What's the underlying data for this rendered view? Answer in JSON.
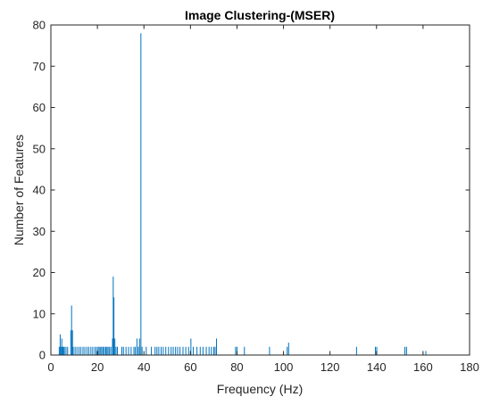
{
  "chart_data": {
    "type": "bar",
    "title": "Image Clustering-(MSER)",
    "xlabel": "Frequency (Hz)",
    "ylabel": "Number of Features",
    "xlim": [
      0,
      180
    ],
    "ylim": [
      0,
      80
    ],
    "xticks": [
      0,
      20,
      40,
      60,
      80,
      100,
      120,
      140,
      160,
      180
    ],
    "yticks": [
      0,
      10,
      20,
      30,
      40,
      50,
      60,
      70,
      80
    ],
    "grid": false,
    "legend": "none",
    "color": "#0072BD",
    "x": [
      3.6,
      4.0,
      4.3,
      4.7,
      5.0,
      5.4,
      5.8,
      6.5,
      7.2,
      8.6,
      8.9,
      9.3,
      9.6,
      10.4,
      11.2,
      12.1,
      12.9,
      13.8,
      14.6,
      15.5,
      16.3,
      17.2,
      18.0,
      18.9,
      19.6,
      20.3,
      20.8,
      21.4,
      21.9,
      22.5,
      23.0,
      23.6,
      24.1,
      24.6,
      25.2,
      25.8,
      26.5,
      26.8,
      27.1,
      27.5,
      28.0,
      28.6,
      30.5,
      31.2,
      32.3,
      33.4,
      34.5,
      35.7,
      36.3,
      37.0,
      37.6,
      38.1,
      38.7,
      39.2,
      41.0,
      43.2,
      44.8,
      45.6,
      46.4,
      47.4,
      48.3,
      49.4,
      50.6,
      51.7,
      52.6,
      53.6,
      54.5,
      55.5,
      56.8,
      58.0,
      59.2,
      60.2,
      61.2,
      62.8,
      64.2,
      65.4,
      66.8,
      68.0,
      69.0,
      70.0,
      70.6,
      71.2,
      79.4,
      80.0,
      83.2,
      94.0,
      101.6,
      102.2,
      131.4,
      139.5,
      140.1,
      152.2,
      152.9,
      161.2
    ],
    "values": [
      2,
      5,
      2,
      4,
      2,
      2,
      2,
      2,
      2,
      6,
      12,
      6,
      2,
      2,
      2,
      2,
      2,
      2,
      2,
      2,
      2,
      2,
      2,
      2,
      2,
      2,
      2,
      2,
      2,
      2,
      2,
      2,
      2,
      2,
      2,
      2,
      4,
      19,
      14,
      4,
      2,
      2,
      2,
      2,
      2,
      2,
      2,
      2,
      2,
      4,
      2,
      4,
      78,
      2,
      2,
      2,
      2,
      2,
      2,
      2,
      2,
      2,
      2,
      2,
      2,
      2,
      2,
      2,
      2,
      2,
      2,
      4,
      2,
      2,
      2,
      2,
      2,
      2,
      2,
      2,
      2,
      4,
      2,
      2,
      2,
      2,
      2,
      3,
      2,
      2,
      2,
      2,
      2,
      1
    ]
  }
}
